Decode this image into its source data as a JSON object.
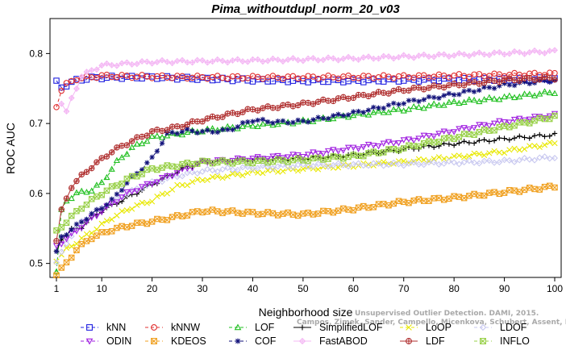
{
  "citation": {
    "line1": "Unsupervised Outlier Detection. DAMI, 2015.",
    "line2": "Campos, Zimek, Sander, Campello, Micenkova, Schubert, Assent, Houle"
  },
  "chart_data": {
    "type": "line",
    "title": "Pima_withoutdupl_norm_20_v03",
    "xlabel": "Neighborhood size",
    "ylabel": "ROC AUC",
    "xlim": [
      1,
      100
    ],
    "ylim": [
      0.48,
      0.85
    ],
    "xticks": [
      1,
      10,
      20,
      30,
      40,
      50,
      60,
      70,
      80,
      90,
      100
    ],
    "yticks": [
      0.5,
      0.6,
      0.7,
      0.8
    ],
    "grid": false,
    "legend_position": "bottom",
    "series": [
      {
        "name": "kNN",
        "color": "#1f1fe0",
        "marker": "square",
        "dash": "4,3",
        "anchors": [
          [
            1,
            0.759
          ],
          [
            2,
            0.752
          ],
          [
            3,
            0.755
          ],
          [
            5,
            0.762
          ],
          [
            8,
            0.765
          ],
          [
            12,
            0.766
          ],
          [
            20,
            0.766
          ],
          [
            30,
            0.764
          ],
          [
            40,
            0.762
          ],
          [
            50,
            0.761
          ],
          [
            60,
            0.761
          ],
          [
            70,
            0.762
          ],
          [
            80,
            0.763
          ],
          [
            90,
            0.763
          ],
          [
            100,
            0.764
          ]
        ]
      },
      {
        "name": "kNNW",
        "color": "#e03030",
        "marker": "circle",
        "dash": "4,3",
        "anchors": [
          [
            1,
            0.725
          ],
          [
            2,
            0.748
          ],
          [
            3,
            0.756
          ],
          [
            5,
            0.764
          ],
          [
            10,
            0.768
          ],
          [
            20,
            0.767
          ],
          [
            30,
            0.766
          ],
          [
            50,
            0.766
          ],
          [
            70,
            0.767
          ],
          [
            85,
            0.769
          ],
          [
            100,
            0.771
          ]
        ]
      },
      {
        "name": "LOF",
        "color": "#22c022",
        "marker": "triangle",
        "dash": "4,3",
        "anchors": [
          [
            1,
            0.488
          ],
          [
            2,
            0.575
          ],
          [
            3,
            0.59
          ],
          [
            5,
            0.6
          ],
          [
            8,
            0.605
          ],
          [
            10,
            0.615
          ],
          [
            13,
            0.645
          ],
          [
            16,
            0.665
          ],
          [
            20,
            0.68
          ],
          [
            25,
            0.685
          ],
          [
            30,
            0.69
          ],
          [
            40,
            0.697
          ],
          [
            50,
            0.703
          ],
          [
            60,
            0.712
          ],
          [
            70,
            0.72
          ],
          [
            80,
            0.73
          ],
          [
            90,
            0.737
          ],
          [
            100,
            0.745
          ]
        ]
      },
      {
        "name": "SimplifiedLOF",
        "color": "#000000",
        "marker": "plus",
        "dash": "",
        "anchors": [
          [
            1,
            0.516
          ],
          [
            2,
            0.535
          ],
          [
            4,
            0.548
          ],
          [
            6,
            0.552
          ],
          [
            8,
            0.565
          ],
          [
            10,
            0.575
          ],
          [
            14,
            0.59
          ],
          [
            18,
            0.605
          ],
          [
            22,
            0.62
          ],
          [
            26,
            0.635
          ],
          [
            30,
            0.645
          ],
          [
            40,
            0.648
          ],
          [
            50,
            0.65
          ],
          [
            60,
            0.655
          ],
          [
            70,
            0.663
          ],
          [
            80,
            0.671
          ],
          [
            90,
            0.678
          ],
          [
            100,
            0.684
          ]
        ]
      },
      {
        "name": "LoOP",
        "color": "#e8e800",
        "marker": "x",
        "dash": "4,3",
        "anchors": [
          [
            1,
            0.505
          ],
          [
            3,
            0.52
          ],
          [
            5,
            0.53
          ],
          [
            8,
            0.545
          ],
          [
            12,
            0.565
          ],
          [
            16,
            0.58
          ],
          [
            20,
            0.59
          ],
          [
            25,
            0.61
          ],
          [
            30,
            0.62
          ],
          [
            40,
            0.63
          ],
          [
            50,
            0.635
          ],
          [
            60,
            0.64
          ],
          [
            70,
            0.645
          ],
          [
            80,
            0.652
          ],
          [
            90,
            0.66
          ],
          [
            100,
            0.672
          ]
        ]
      },
      {
        "name": "LDOF",
        "color": "#c8c8f0",
        "marker": "diamond",
        "dash": "4,3",
        "anchors": [
          [
            1,
            0.5
          ],
          [
            3,
            0.53
          ],
          [
            6,
            0.56
          ],
          [
            10,
            0.58
          ],
          [
            15,
            0.6
          ],
          [
            20,
            0.615
          ],
          [
            25,
            0.625
          ],
          [
            30,
            0.632
          ],
          [
            40,
            0.637
          ],
          [
            50,
            0.64
          ],
          [
            60,
            0.641
          ],
          [
            70,
            0.642
          ],
          [
            80,
            0.644
          ],
          [
            90,
            0.646
          ],
          [
            100,
            0.652
          ]
        ]
      },
      {
        "name": "ODIN",
        "color": "#a020e0",
        "marker": "triangle-down",
        "dash": "4,3",
        "anchors": [
          [
            1,
            0.525
          ],
          [
            3,
            0.535
          ],
          [
            6,
            0.553
          ],
          [
            10,
            0.575
          ],
          [
            15,
            0.6
          ],
          [
            20,
            0.615
          ],
          [
            25,
            0.63
          ],
          [
            30,
            0.645
          ],
          [
            40,
            0.65
          ],
          [
            50,
            0.655
          ],
          [
            60,
            0.665
          ],
          [
            70,
            0.675
          ],
          [
            80,
            0.69
          ],
          [
            90,
            0.703
          ],
          [
            100,
            0.712
          ]
        ]
      },
      {
        "name": "KDEOS",
        "color": "#f0a020",
        "marker": "square-x",
        "dash": "4,3",
        "anchors": [
          [
            1,
            0.485
          ],
          [
            3,
            0.5
          ],
          [
            5,
            0.52
          ],
          [
            8,
            0.537
          ],
          [
            12,
            0.548
          ],
          [
            16,
            0.555
          ],
          [
            20,
            0.56
          ],
          [
            25,
            0.567
          ],
          [
            30,
            0.575
          ],
          [
            35,
            0.574
          ],
          [
            40,
            0.572
          ],
          [
            50,
            0.57
          ],
          [
            60,
            0.578
          ],
          [
            70,
            0.588
          ],
          [
            80,
            0.594
          ],
          [
            90,
            0.602
          ],
          [
            100,
            0.61
          ]
        ]
      },
      {
        "name": "COF",
        "color": "#12127a",
        "marker": "star",
        "dash": "4,3",
        "anchors": [
          [
            1,
            0.515
          ],
          [
            2,
            0.538
          ],
          [
            4,
            0.548
          ],
          [
            6,
            0.56
          ],
          [
            9,
            0.575
          ],
          [
            12,
            0.59
          ],
          [
            15,
            0.615
          ],
          [
            20,
            0.65
          ],
          [
            23,
            0.685
          ],
          [
            27,
            0.69
          ],
          [
            30,
            0.688
          ],
          [
            35,
            0.69
          ],
          [
            40,
            0.705
          ],
          [
            45,
            0.702
          ],
          [
            50,
            0.703
          ],
          [
            60,
            0.715
          ],
          [
            70,
            0.73
          ],
          [
            80,
            0.742
          ],
          [
            90,
            0.755
          ],
          [
            100,
            0.762
          ]
        ]
      },
      {
        "name": "FastABOD",
        "color": "#f4b8f4",
        "marker": "diamond-plus",
        "dash": "",
        "anchors": [
          [
            2,
            0.73
          ],
          [
            3,
            0.716
          ],
          [
            4,
            0.735
          ],
          [
            6,
            0.768
          ],
          [
            10,
            0.783
          ],
          [
            20,
            0.788
          ],
          [
            40,
            0.79
          ],
          [
            60,
            0.793
          ],
          [
            80,
            0.798
          ],
          [
            100,
            0.803
          ]
        ]
      },
      {
        "name": "LDF",
        "color": "#b03030",
        "marker": "circle-plus",
        "dash": "",
        "anchors": [
          [
            1,
            0.533
          ],
          [
            2,
            0.575
          ],
          [
            4,
            0.61
          ],
          [
            6,
            0.625
          ],
          [
            8,
            0.638
          ],
          [
            12,
            0.66
          ],
          [
            16,
            0.675
          ],
          [
            20,
            0.688
          ],
          [
            25,
            0.695
          ],
          [
            30,
            0.705
          ],
          [
            40,
            0.72
          ],
          [
            50,
            0.728
          ],
          [
            60,
            0.738
          ],
          [
            70,
            0.748
          ],
          [
            80,
            0.755
          ],
          [
            90,
            0.762
          ],
          [
            100,
            0.765
          ]
        ]
      },
      {
        "name": "INFLO",
        "color": "#98d048",
        "marker": "square-x",
        "dash": "4,3",
        "anchors": [
          [
            1,
            0.545
          ],
          [
            3,
            0.56
          ],
          [
            6,
            0.58
          ],
          [
            10,
            0.6
          ],
          [
            15,
            0.62
          ],
          [
            20,
            0.635
          ],
          [
            25,
            0.64
          ],
          [
            30,
            0.645
          ],
          [
            40,
            0.645
          ],
          [
            50,
            0.648
          ],
          [
            60,
            0.653
          ],
          [
            70,
            0.665
          ],
          [
            80,
            0.68
          ],
          [
            90,
            0.695
          ],
          [
            100,
            0.71
          ]
        ]
      }
    ]
  },
  "legend_layout": [
    [
      "kNN",
      "kNNW",
      "LOF",
      "SimplifiedLOF",
      "LoOP",
      "LDOF"
    ],
    [
      "ODIN",
      "KDEOS",
      "COF",
      "FastABOD",
      "LDF",
      "INFLO"
    ]
  ]
}
